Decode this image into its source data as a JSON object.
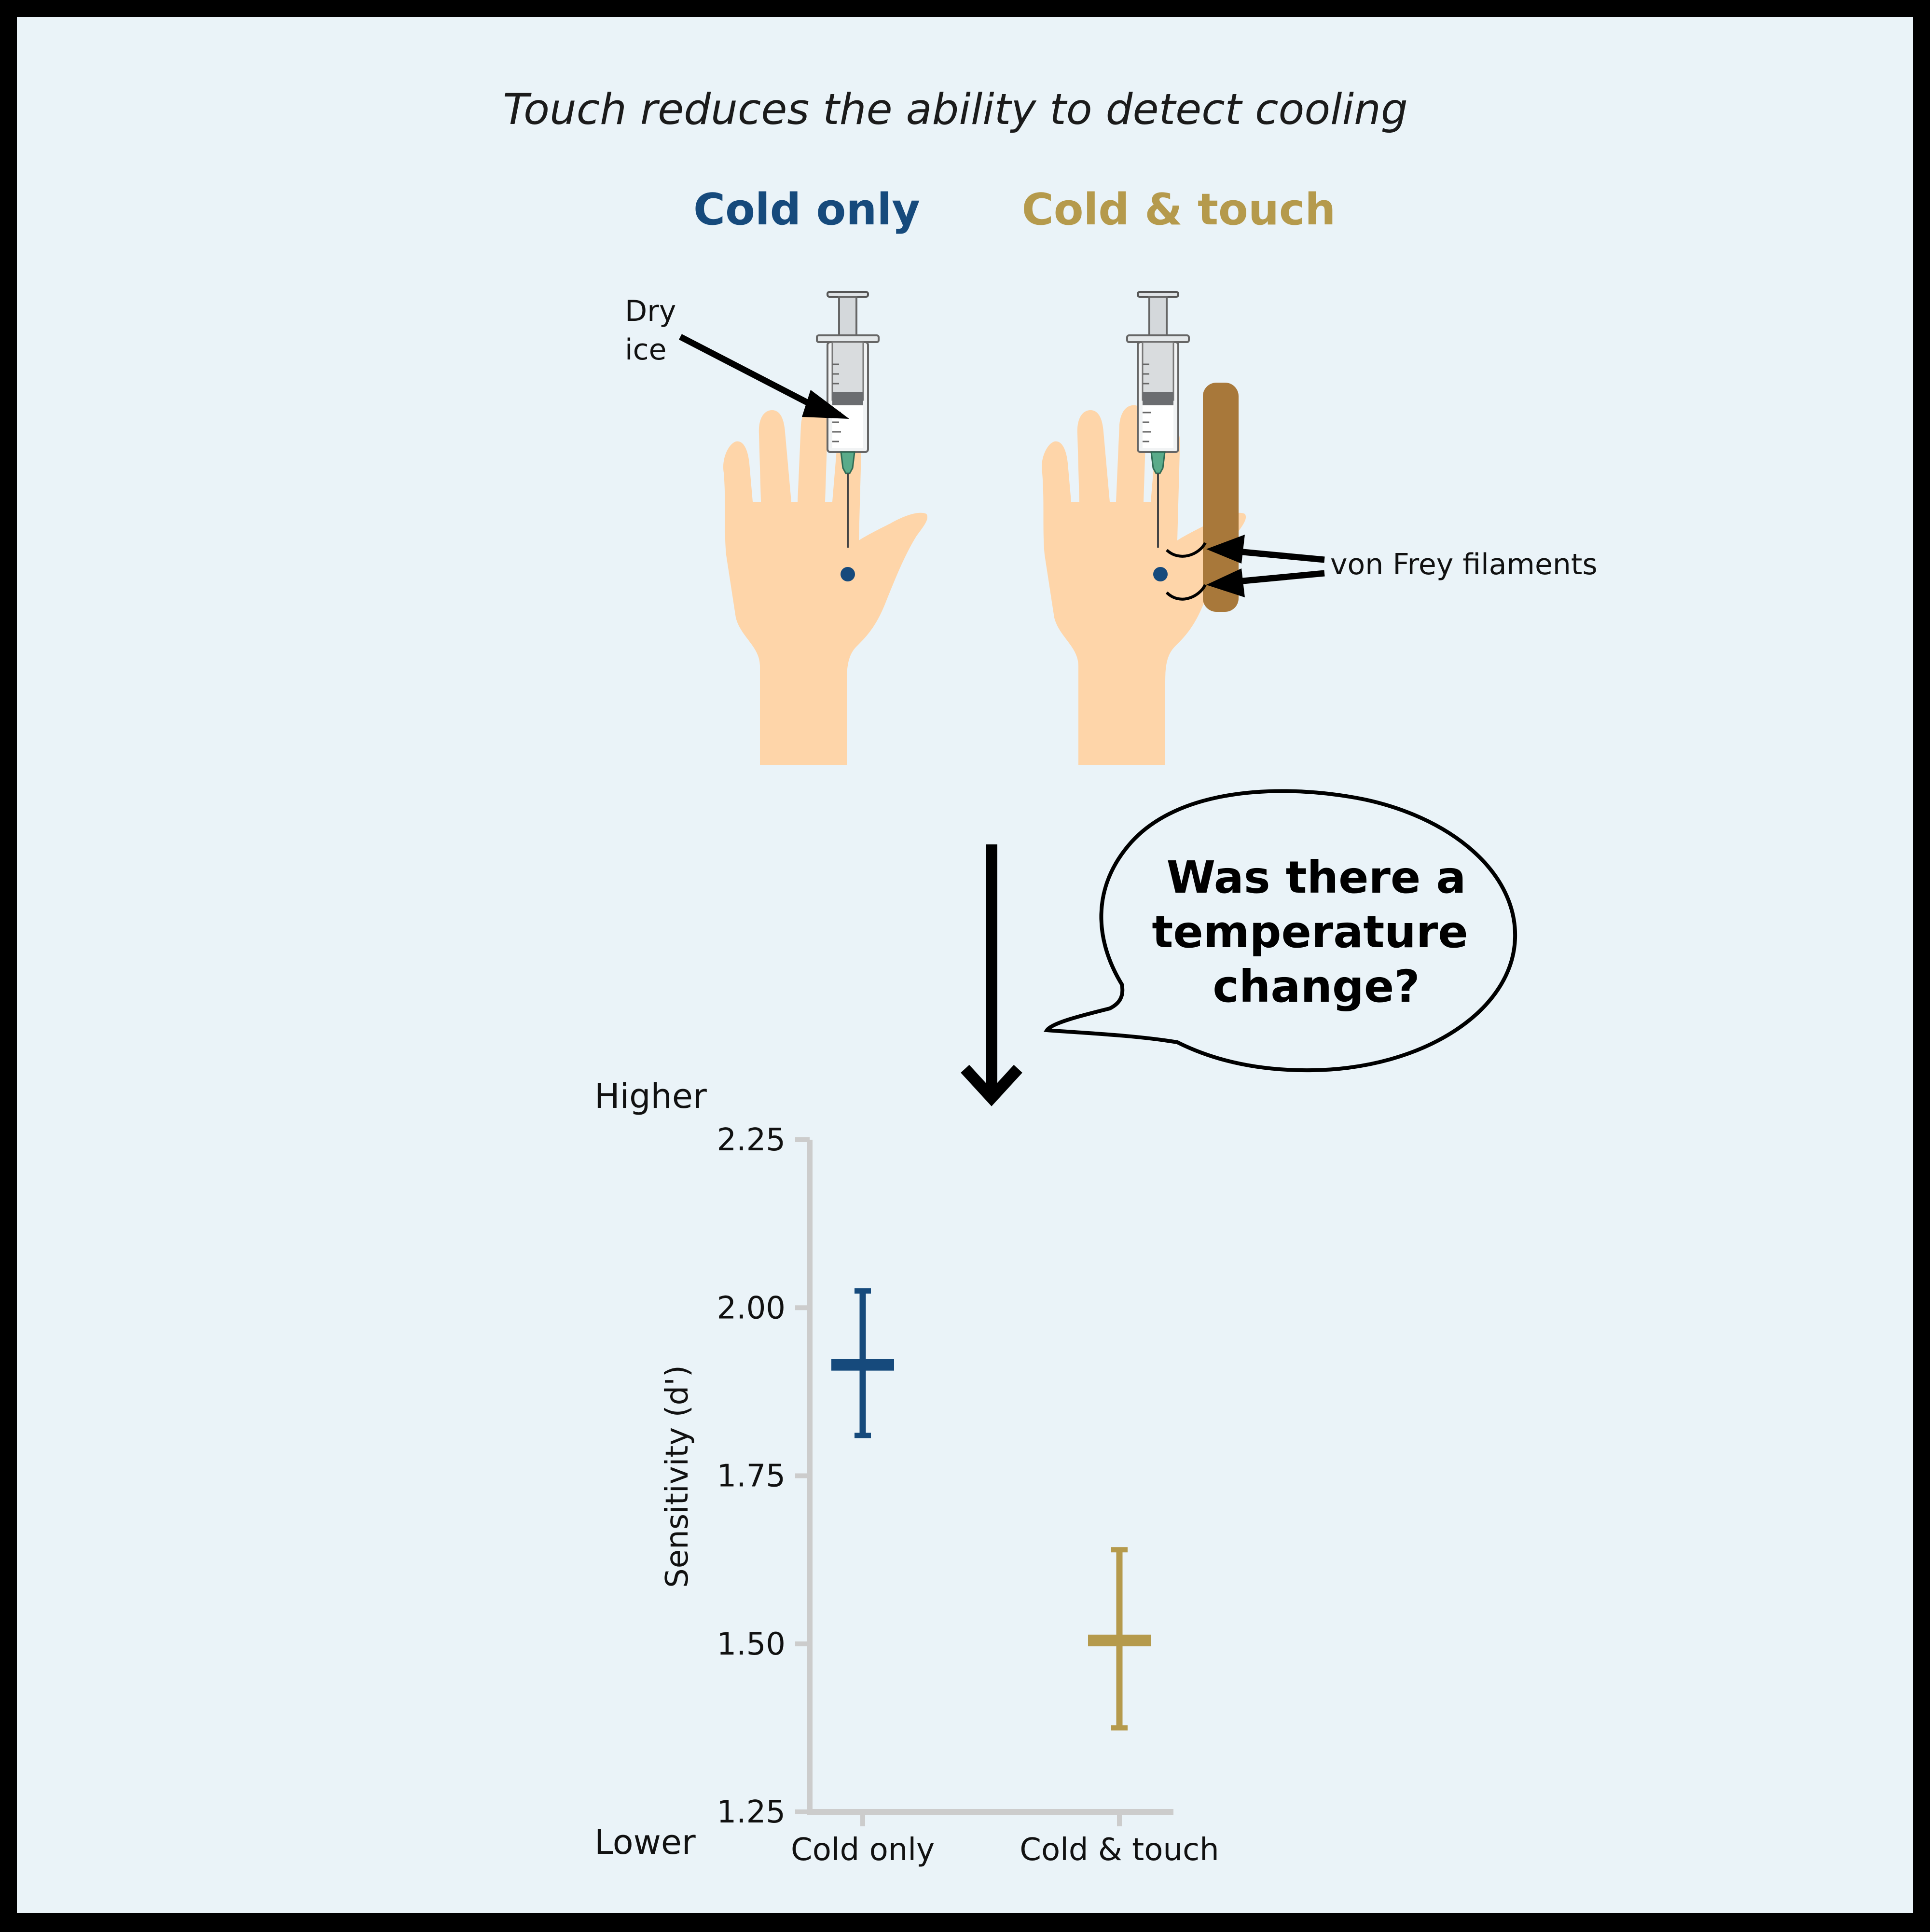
{
  "title": "Touch reduces the ability to detect cooling",
  "conditions": {
    "cold_only": "Cold only",
    "cold_touch": "Cold & touch"
  },
  "labels": {
    "dry_ice_line1": "Dry",
    "dry_ice_line2": "ice",
    "von_frey": "von Frey filaments"
  },
  "speech_bubble": {
    "line1": "Was there a",
    "line2": "temperature",
    "line3": "change?"
  },
  "colors": {
    "cold_only": "#164a7c",
    "cold_touch": "#b59a4c",
    "background": "#eaf3f8",
    "frame": "#000000",
    "hand": "#fed5a9",
    "probe": "#a8783a",
    "axis": "#cccccc"
  },
  "chart_data": {
    "type": "scatter",
    "ylabel": "Sensitivity (d')",
    "ylim": [
      1.25,
      2.25
    ],
    "yticks": [
      "2.25",
      "2.00",
      "1.75",
      "1.50",
      "1.25"
    ],
    "higher_label": "Higher",
    "lower_label": "Lower",
    "categories": [
      "Cold only",
      "Cold & touch"
    ],
    "points": [
      {
        "category": "Cold only",
        "mean": 1.915,
        "lower": 1.81,
        "upper": 2.025
      },
      {
        "category": "Cold & touch",
        "mean": 1.505,
        "lower": 1.375,
        "upper": 1.64
      }
    ]
  }
}
